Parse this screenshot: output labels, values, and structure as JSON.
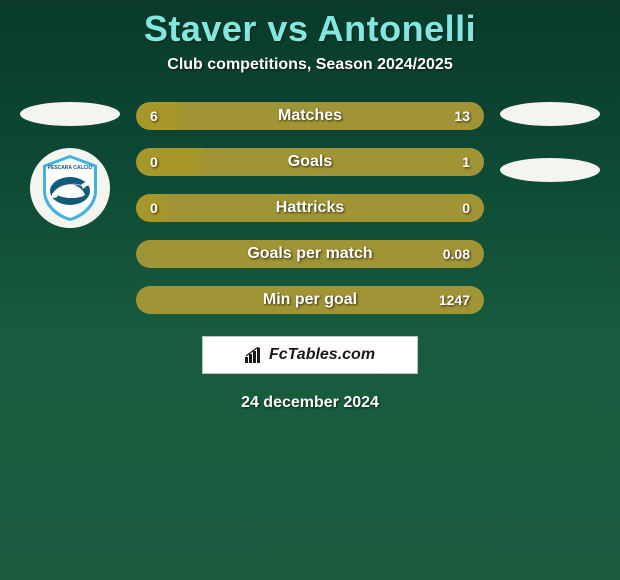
{
  "title": "Staver vs Antonelli",
  "subtitle": "Club competitions, Season 2024/2025",
  "date": "24 december 2024",
  "branding": "FcTables.com",
  "colors": {
    "title": "#7fe8e0",
    "text_white": "#ffffff",
    "bar_left": "#a69728",
    "bar_right": "#9e943a",
    "ellipse": "#f5f5f0",
    "badge_bg": "#f5f5f0",
    "badge_blue": "#3fb3e6",
    "badge_dark": "#0f5b7a",
    "fctables_bg": "#ffffff",
    "fctables_border": "#c0c0c0",
    "fctables_text": "#1a1a1a"
  },
  "left_side": {
    "ellipse_count": 1,
    "has_badge": true,
    "badge_team": "Pescara Calcio"
  },
  "right_side": {
    "ellipse_count": 2,
    "has_badge": false
  },
  "stats": [
    {
      "label": "Matches",
      "left_value": "6",
      "right_value": "13",
      "left_pct": 12,
      "right_pct": 88,
      "left_color": "#a69728",
      "right_color": "#a09434"
    },
    {
      "label": "Goals",
      "left_value": "0",
      "right_value": "1",
      "left_pct": 19,
      "right_pct": 81,
      "left_color": "#a69728",
      "right_color": "#a09434"
    },
    {
      "label": "Hattricks",
      "left_value": "0",
      "right_value": "0",
      "left_pct": 8,
      "right_pct": 92,
      "left_color": "#a69728",
      "right_color": "#a09434"
    },
    {
      "label": "Goals per match",
      "left_value": "",
      "right_value": "0.08",
      "left_pct": 0,
      "right_pct": 100,
      "left_color": "#a69728",
      "right_color": "#a09434"
    },
    {
      "label": "Min per goal",
      "left_value": "",
      "right_value": "1247",
      "left_pct": 0,
      "right_pct": 100,
      "left_color": "#a69728",
      "right_color": "#a09434"
    }
  ],
  "bar_style": {
    "height": 28,
    "border_radius": 14,
    "gap": 18,
    "label_fontsize": 16,
    "value_fontsize": 14
  }
}
